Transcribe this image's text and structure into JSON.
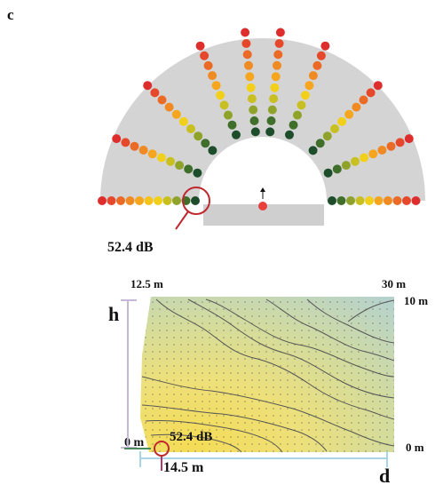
{
  "panel_label": "c",
  "top_figure": {
    "highlight_label": "52.4 dB"
  },
  "bottom_figure": {
    "top_left_label": "12.5 m",
    "top_right_label": "30 m",
    "right_top_label": "10 m",
    "right_bottom_label": "0 m",
    "left_bottom_label": "0 m",
    "height_symbol": "h",
    "depth_symbol": "d",
    "marker_label": "52.4 dB",
    "marker_distance": "14.5 m"
  },
  "colors": {
    "fan_fill": "#d4d4d4",
    "stage_fill": "#cfcfcf",
    "highlight_ring": "#c0282d",
    "source_dot": "#e8403a",
    "dimension_lines": "#c8b8d8",
    "dimension_lines_bottom": "#a8d4e6",
    "contour_low": "#f2dc62",
    "contour_high": "#b8d4d0"
  },
  "icons": [
    "arrow-up-icon",
    "highlight-circle-icon",
    "marker-circle-icon"
  ]
}
